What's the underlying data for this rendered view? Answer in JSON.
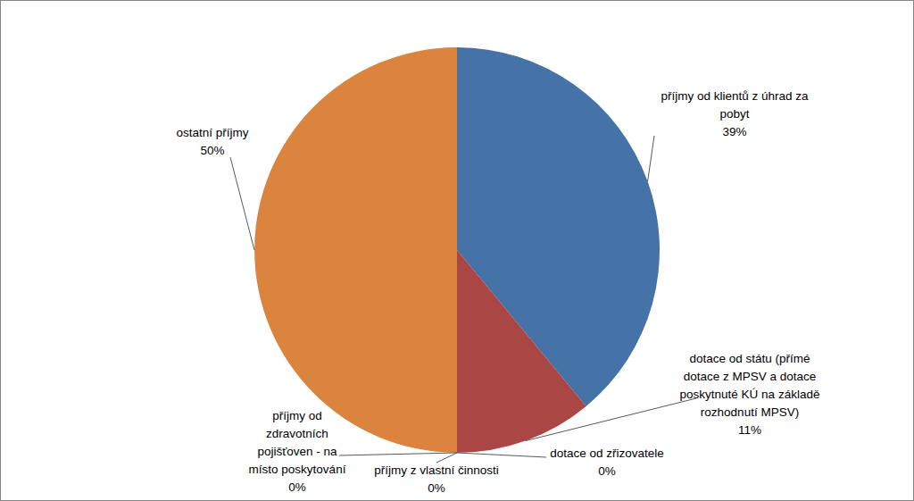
{
  "chart_data": {
    "type": "pie",
    "categories": [
      "příjmy od klientů z úhrad za pobyt",
      "dotace od státu (přímé dotace z MPSV a dotace poskytnuté KÚ na základě rozhodnutí MPSV)",
      "dotace od zřizovatele",
      "příjmy z vlastní činnosti",
      "příjmy od zdravotních pojišťoven - na místo poskytování",
      "ostatní příjmy"
    ],
    "values": [
      39,
      11,
      0,
      0,
      0,
      50
    ],
    "value_labels": [
      "39%",
      "11%",
      "0%",
      "0%",
      "0%",
      "50%"
    ],
    "colors": [
      "#4572a7",
      "#aa4643",
      "#89a54e",
      "#80699b",
      "#3d96ae",
      "#db843d"
    ]
  }
}
